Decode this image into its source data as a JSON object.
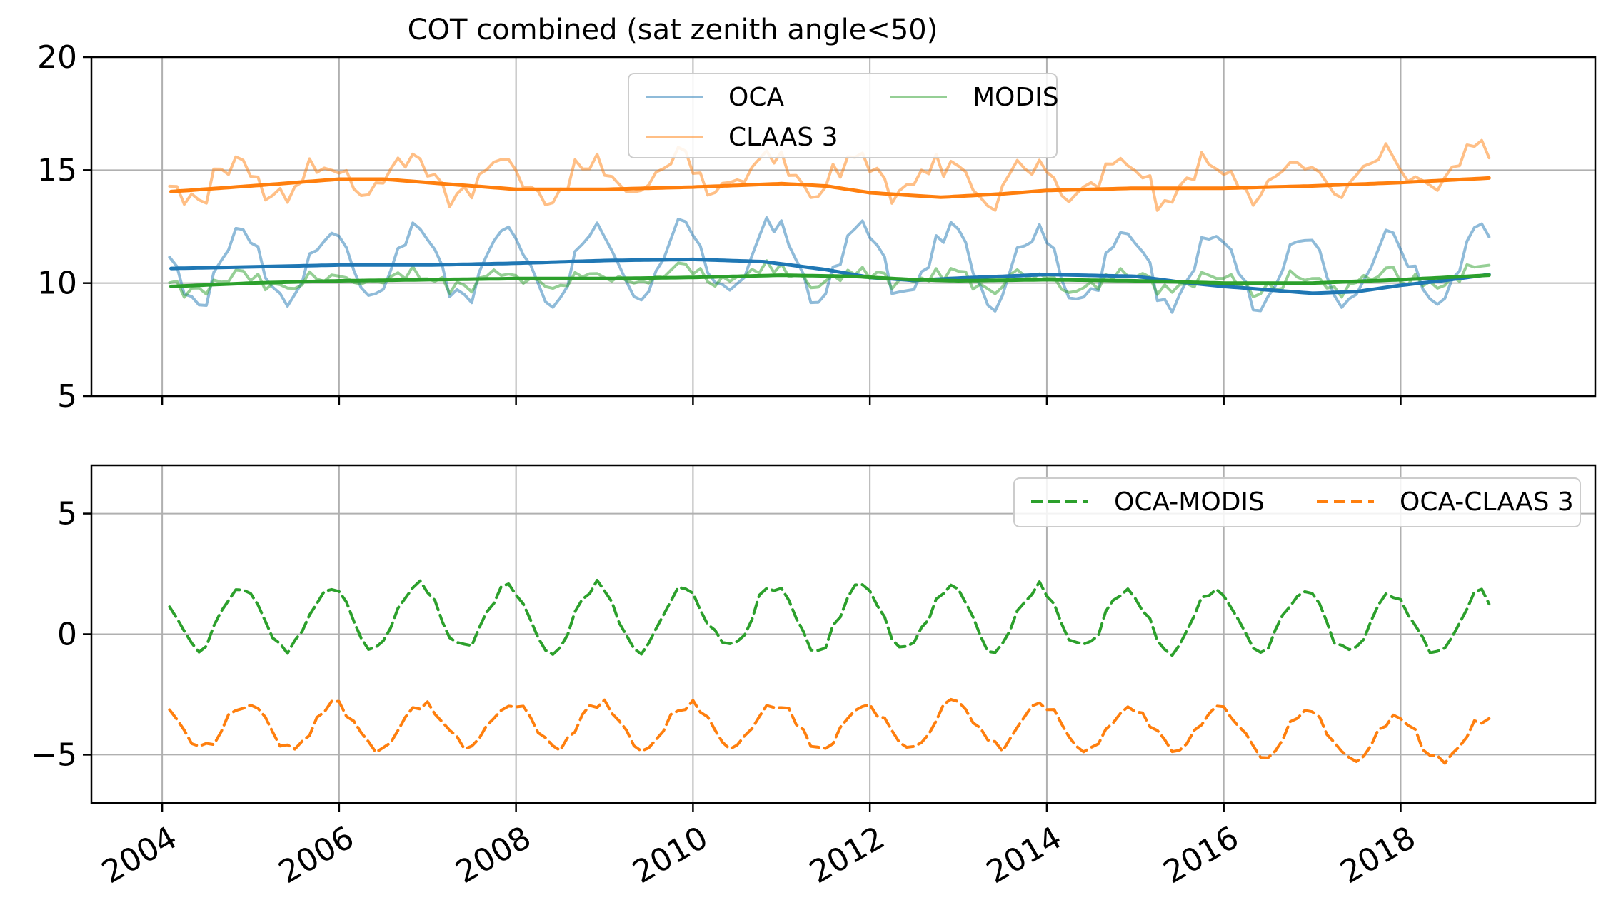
{
  "chart_data": [
    {
      "type": "line",
      "title": "COT combined (sat zenith angle<50)",
      "xlabel": "",
      "ylabel": "",
      "xlim": [
        2003.2,
        2020.2
      ],
      "ylim": [
        5,
        20
      ],
      "yticks": [
        5,
        10,
        15,
        20
      ],
      "xticks": [
        2004,
        2006,
        2008,
        2010,
        2012,
        2014,
        2016,
        2018
      ],
      "grid": true,
      "legend_position": "top-center",
      "series": [
        {
          "name": "OCA",
          "key": "oca",
          "color": "#1f77b4",
          "alpha": 0.5,
          "dash": "solid",
          "in_legend": true
        },
        {
          "name": "CLAAS 3",
          "key": "claas",
          "color": "#ff7f0e",
          "alpha": 0.5,
          "dash": "solid",
          "in_legend": true
        },
        {
          "name": "MODIS",
          "key": "modis",
          "color": "#2ca02c",
          "alpha": 0.5,
          "dash": "solid",
          "in_legend": true
        },
        {
          "name": "OCA trend",
          "key": "oca_trend",
          "color": "#1f77b4",
          "alpha": 1,
          "dash": "solid",
          "in_legend": false
        },
        {
          "name": "CLAAS 3 trend",
          "key": "claas_trend",
          "color": "#ff7f0e",
          "alpha": 1,
          "dash": "solid",
          "in_legend": false
        },
        {
          "name": "MODIS trend",
          "key": "modis_trend",
          "color": "#2ca02c",
          "alpha": 1,
          "dash": "solid",
          "in_legend": false
        }
      ],
      "trend_points": {
        "oca_trend": [
          [
            2004.1,
            10.65
          ],
          [
            2005.0,
            10.72
          ],
          [
            2006.0,
            10.8
          ],
          [
            2007.0,
            10.8
          ],
          [
            2008.0,
            10.88
          ],
          [
            2009.0,
            11.0
          ],
          [
            2010.0,
            11.05
          ],
          [
            2010.8,
            10.95
          ],
          [
            2011.5,
            10.6
          ],
          [
            2012.0,
            10.25
          ],
          [
            2012.5,
            10.12
          ],
          [
            2013.0,
            10.22
          ],
          [
            2014.0,
            10.38
          ],
          [
            2015.0,
            10.3
          ],
          [
            2015.5,
            10.05
          ],
          [
            2016.0,
            9.85
          ],
          [
            2016.5,
            9.7
          ],
          [
            2017.0,
            9.55
          ],
          [
            2017.5,
            9.62
          ],
          [
            2018.0,
            9.9
          ],
          [
            2018.5,
            10.12
          ],
          [
            2019.0,
            10.38
          ]
        ],
        "claas_trend": [
          [
            2004.1,
            14.05
          ],
          [
            2005.0,
            14.3
          ],
          [
            2006.0,
            14.6
          ],
          [
            2006.5,
            14.6
          ],
          [
            2007.0,
            14.45
          ],
          [
            2008.0,
            14.15
          ],
          [
            2009.0,
            14.15
          ],
          [
            2010.0,
            14.25
          ],
          [
            2011.0,
            14.4
          ],
          [
            2011.5,
            14.3
          ],
          [
            2012.0,
            14.0
          ],
          [
            2012.8,
            13.8
          ],
          [
            2013.5,
            13.95
          ],
          [
            2014.0,
            14.1
          ],
          [
            2015.0,
            14.2
          ],
          [
            2016.0,
            14.2
          ],
          [
            2017.0,
            14.3
          ],
          [
            2018.0,
            14.45
          ],
          [
            2019.0,
            14.65
          ]
        ],
        "modis_trend": [
          [
            2004.1,
            9.85
          ],
          [
            2005.0,
            10.0
          ],
          [
            2006.0,
            10.1
          ],
          [
            2007.0,
            10.15
          ],
          [
            2008.0,
            10.2
          ],
          [
            2009.0,
            10.2
          ],
          [
            2010.0,
            10.25
          ],
          [
            2011.0,
            10.35
          ],
          [
            2011.8,
            10.3
          ],
          [
            2012.5,
            10.15
          ],
          [
            2013.0,
            10.1
          ],
          [
            2014.0,
            10.15
          ],
          [
            2015.0,
            10.1
          ],
          [
            2016.0,
            10.0
          ],
          [
            2017.0,
            10.0
          ],
          [
            2018.0,
            10.15
          ],
          [
            2019.0,
            10.35
          ]
        ]
      }
    },
    {
      "type": "line",
      "title": "",
      "xlabel": "",
      "ylabel": "",
      "xlim": [
        2003.2,
        2020.2
      ],
      "ylim": [
        -7,
        7
      ],
      "yticks": [
        -5,
        0,
        5
      ],
      "xticks": [
        2004,
        2006,
        2008,
        2010,
        2012,
        2014,
        2016,
        2018
      ],
      "grid": true,
      "legend_position": "top-right",
      "series": [
        {
          "name": "OCA-MODIS",
          "key": "oca_modis",
          "color": "#2ca02c",
          "alpha": 1,
          "dash": "dashed",
          "in_legend": true
        },
        {
          "name": "OCA-CLAAS 3",
          "key": "oca_claas",
          "color": "#ff7f0e",
          "alpha": 1,
          "dash": "dashed",
          "in_legend": true
        }
      ]
    }
  ],
  "tick_labels": {
    "top_y": [
      "5",
      "10",
      "15",
      "20"
    ],
    "bottom_y": [
      "−5",
      "0",
      "5"
    ],
    "x": [
      "2004",
      "2006",
      "2008",
      "2010",
      "2012",
      "2014",
      "2016",
      "2018"
    ]
  },
  "colors": {
    "oca": "#1f77b4",
    "claas": "#ff7f0e",
    "modis": "#2ca02c",
    "grid": "#b0b0b0"
  }
}
